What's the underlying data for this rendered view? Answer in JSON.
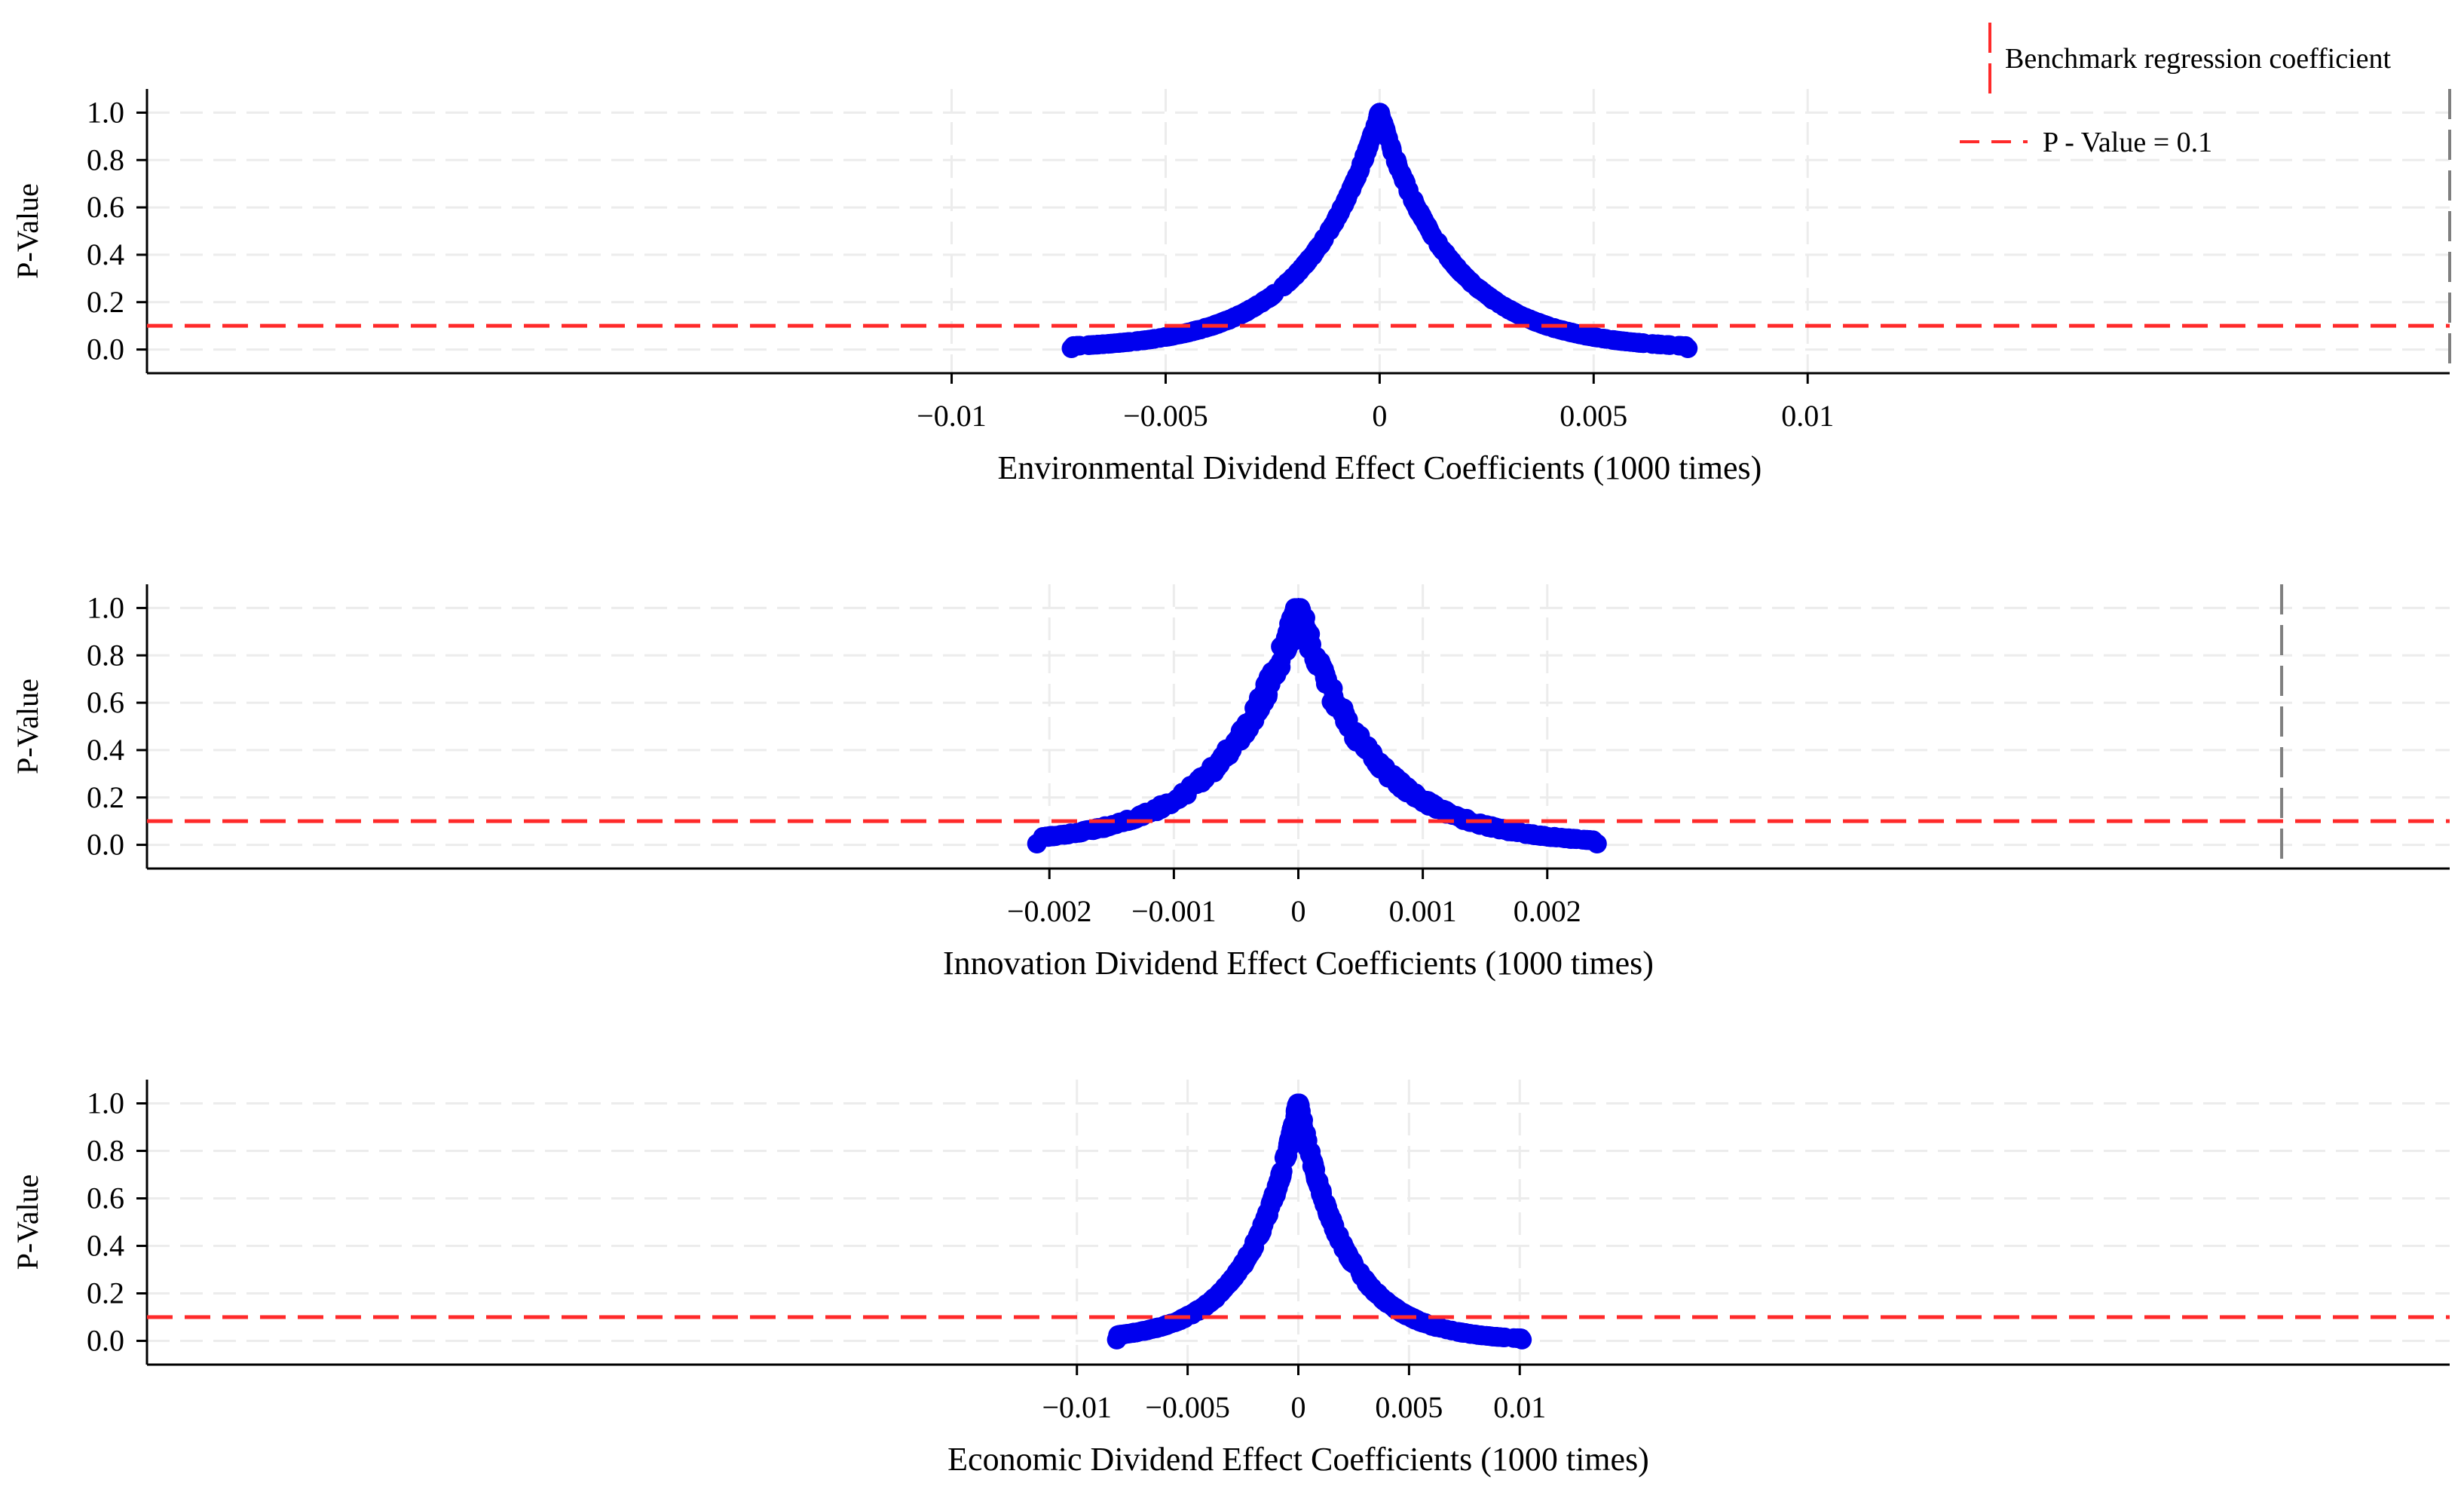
{
  "colors": {
    "points": "#0000ee",
    "threshold_line": "#ff2a2a",
    "benchmark_line": "#7f7f7f",
    "grid": "#ececec",
    "axis": "#000000"
  },
  "legend": {
    "benchmark_label": "Benchmark regression coefficient",
    "pvalue_label": "P - Value = 0.1",
    "placement": "top-right"
  },
  "chart_data": [
    {
      "type": "scatter",
      "xlabel": "Environmental Dividend Effect Coefficients (1000 times)",
      "ylabel": "P-Value",
      "xticks": [
        -0.01,
        -0.005,
        0,
        0.005,
        0.01
      ],
      "xtick_labels": [
        "−0.01",
        "−0.005",
        "0",
        "0.005",
        "0.01"
      ],
      "yticks": [
        0.0,
        0.2,
        0.4,
        0.6,
        0.8,
        1.0
      ],
      "ytick_labels": [
        "0.0",
        "0.2",
        "0.4",
        "0.6",
        "0.8",
        "1.0"
      ],
      "xlim": [
        -0.0288,
        0.025
      ],
      "ylim": [
        -0.1,
        1.1
      ],
      "reference_line_y": 0.1,
      "benchmark_x": 0.025,
      "shape": {
        "left_extent": -0.0072,
        "right_extent": 0.0072,
        "decay": 0.0017,
        "spread": 0.01,
        "n": 500
      },
      "grid": true
    },
    {
      "type": "scatter",
      "xlabel": "Innovation Dividend Effect Coefficients (1000 times)",
      "ylabel": "P-Value",
      "xticks": [
        -0.002,
        -0.001,
        0,
        0.001,
        0.002
      ],
      "xtick_labels": [
        "−0.002",
        "−0.001",
        "0",
        "0.001",
        "0.002"
      ],
      "yticks": [
        0.0,
        0.2,
        0.4,
        0.6,
        0.8,
        1.0
      ],
      "ytick_labels": [
        "0.0",
        "0.2",
        "0.4",
        "0.6",
        "0.8",
        "1.0"
      ],
      "xlim": [
        -0.00925,
        0.00925
      ],
      "ylim": [
        -0.1,
        1.1
      ],
      "reference_line_y": 0.1,
      "benchmark_x": 0.0079,
      "shape": {
        "left_extent": -0.0021,
        "right_extent": 0.0024,
        "decay": 0.0006,
        "spread": 0.06,
        "n": 500
      },
      "grid": true
    },
    {
      "type": "scatter",
      "xlabel": "Economic Dividend Effect Coefficients (1000 times)",
      "ylabel": "P-Value",
      "xticks": [
        -0.01,
        -0.005,
        0,
        0.005,
        0.01
      ],
      "xtick_labels": [
        "−0.01",
        "−0.005",
        "0",
        "0.005",
        "0.01"
      ],
      "yticks": [
        0.0,
        0.2,
        0.4,
        0.6,
        0.8,
        1.0
      ],
      "ytick_labels": [
        "0.0",
        "0.2",
        "0.4",
        "0.6",
        "0.8",
        "1.0"
      ],
      "xlim": [
        -0.052,
        0.052
      ],
      "ylim": [
        -0.1,
        1.1
      ],
      "reference_line_y": 0.1,
      "shape": {
        "left_extent": -0.0082,
        "right_extent": 0.0101,
        "decay": 0.0022,
        "spread": 0.03,
        "n": 500
      },
      "grid": true
    }
  ]
}
